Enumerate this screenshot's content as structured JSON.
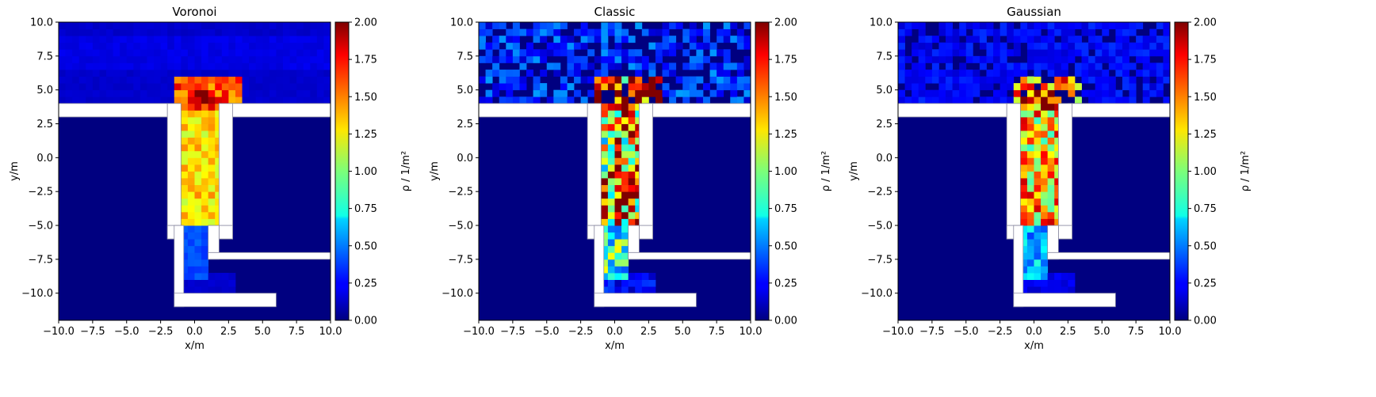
{
  "figure": {
    "colorbar_label": "ρ / 1/m²",
    "colormap": "jet",
    "colorbar_ticks": [
      "0.00",
      "0.25",
      "0.50",
      "0.75",
      "1.00",
      "1.25",
      "1.50",
      "1.75",
      "2.00"
    ],
    "x_ticks": [
      "−10.0",
      "−7.5",
      "−5.0",
      "−2.5",
      "0.0",
      "2.5",
      "5.0",
      "7.5",
      "10.0"
    ],
    "y_ticks": [
      "10.0",
      "7.5",
      "5.0",
      "2.5",
      "0.0",
      "−2.5",
      "−5.0",
      "−7.5",
      "−10.0"
    ],
    "xlabel": "x/m",
    "ylabel": "y/m"
  },
  "chart_data": [
    {
      "type": "heatmap",
      "title": "Voronoi",
      "xlabel": "x/m",
      "ylabel": "y/m",
      "xlim": [
        -10,
        10
      ],
      "ylim": [
        -12,
        10
      ],
      "clim": [
        0,
        2
      ],
      "colorbar_label": "ρ / 1/m²",
      "grid_resolution_m": 0.5,
      "smoothing": 1.0,
      "regions": [
        {
          "desc": "upper area band",
          "x": [
            -10,
            10
          ],
          "y": [
            4,
            10
          ],
          "value": 0.15
        },
        {
          "desc": "upper area secondary band",
          "x": [
            -10,
            10
          ],
          "y": [
            6.5,
            9
          ],
          "value": 0.2
        },
        {
          "desc": "exit hotspot",
          "x": [
            -1.5,
            3.5
          ],
          "y": [
            3.5,
            5.8
          ],
          "value": 1.6
        },
        {
          "desc": "exit core",
          "x": [
            0,
            1.5
          ],
          "y": [
            3.8,
            5
          ],
          "value": 2.0
        },
        {
          "desc": "corridor",
          "x": [
            -1.5,
            1.8
          ],
          "y": [
            -5,
            4
          ],
          "value": 1.3
        },
        {
          "desc": "corridor bottom",
          "x": [
            -1,
            1
          ],
          "y": [
            -9,
            -5
          ],
          "value": 0.4
        },
        {
          "desc": "lower area",
          "x": [
            -1,
            3
          ],
          "y": [
            -10,
            -8.5
          ],
          "value": 0.15
        }
      ]
    },
    {
      "type": "heatmap",
      "title": "Classic",
      "xlabel": "x/m",
      "ylabel": "y/m",
      "xlim": [
        -10,
        10
      ],
      "ylim": [
        -12,
        10
      ],
      "clim": [
        0,
        2
      ],
      "colorbar_label": "ρ / 1/m²",
      "grid_resolution_m": 0.5,
      "smoothing": 0.0,
      "regions": [
        {
          "desc": "upper area band",
          "x": [
            -10,
            10
          ],
          "y": [
            4,
            10
          ],
          "value": 0.35
        },
        {
          "desc": "exit hotspot",
          "x": [
            -1.5,
            3.5
          ],
          "y": [
            3.5,
            5.8
          ],
          "value": 1.8
        },
        {
          "desc": "exit core",
          "x": [
            0,
            2
          ],
          "y": [
            3.8,
            5
          ],
          "value": 2.0
        },
        {
          "desc": "corridor",
          "x": [
            -1.5,
            1.8
          ],
          "y": [
            -5,
            4
          ],
          "value": 1.4
        },
        {
          "desc": "corridor bottom",
          "x": [
            -1,
            1
          ],
          "y": [
            -9,
            -5
          ],
          "value": 0.8
        },
        {
          "desc": "lower area",
          "x": [
            -1,
            3
          ],
          "y": [
            -10,
            -8.5
          ],
          "value": 0.25
        }
      ]
    },
    {
      "type": "heatmap",
      "title": "Gaussian",
      "xlabel": "x/m",
      "ylabel": "y/m",
      "xlim": [
        -10,
        10
      ],
      "ylim": [
        -12,
        10
      ],
      "clim": [
        0,
        2
      ],
      "colorbar_label": "ρ / 1/m²",
      "grid_resolution_m": 0.5,
      "smoothing": 0.5,
      "regions": [
        {
          "desc": "upper area band",
          "x": [
            -10,
            10
          ],
          "y": [
            4,
            10
          ],
          "value": 0.25
        },
        {
          "desc": "exit hotspot",
          "x": [
            -1.5,
            3.5
          ],
          "y": [
            3.5,
            5.8
          ],
          "value": 1.7
        },
        {
          "desc": "exit core",
          "x": [
            0,
            2
          ],
          "y": [
            3.8,
            5
          ],
          "value": 2.0
        },
        {
          "desc": "corridor",
          "x": [
            -1.5,
            1.8
          ],
          "y": [
            -5,
            4
          ],
          "value": 1.35
        },
        {
          "desc": "corridor bottom",
          "x": [
            -1,
            1
          ],
          "y": [
            -9,
            -5
          ],
          "value": 0.6
        },
        {
          "desc": "lower area",
          "x": [
            -1,
            3
          ],
          "y": [
            -10,
            -8.5
          ],
          "value": 0.2
        }
      ]
    }
  ]
}
